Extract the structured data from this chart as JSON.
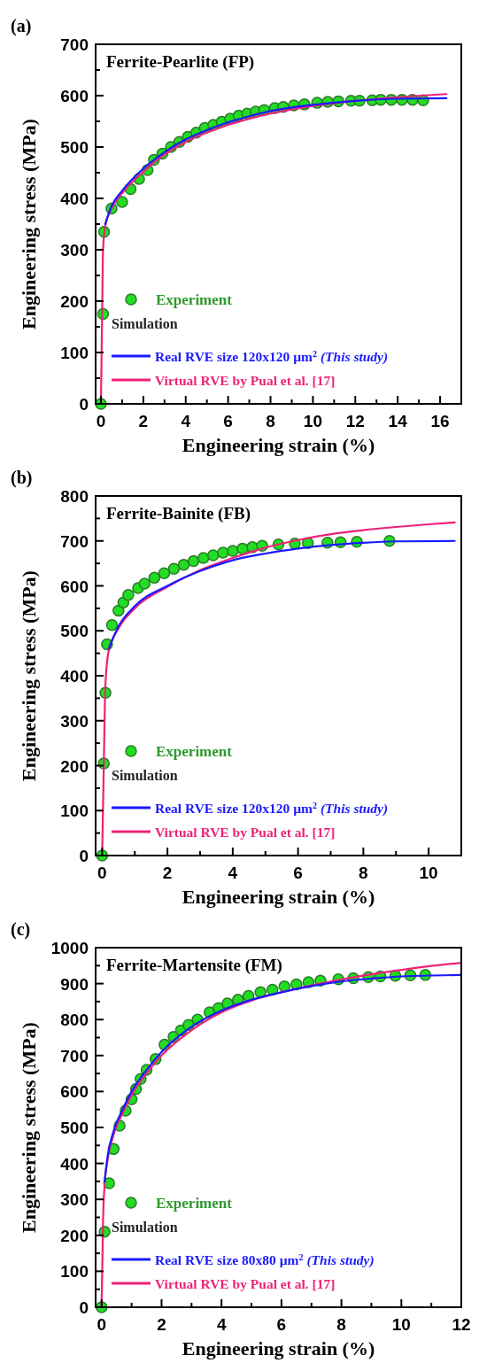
{
  "chart_data": [
    {
      "type": "line",
      "title": "Ferrite-Pearlite (FP)",
      "xlabel": "Engineering strain (%)",
      "ylabel": "Engineering stress (MPa)",
      "legend_title": "Simulation",
      "annotations": [
        "(a)"
      ],
      "legend": "bottom left",
      "xlim": [
        -0.25,
        17
      ],
      "ylim": [
        0,
        700
      ],
      "xticks": [
        0,
        {
          "value": 1,
          "label": null
        },
        2,
        {
          "value": 3,
          "label": null
        },
        4,
        {
          "value": 5,
          "label": null
        },
        6,
        {
          "value": 7,
          "label": null
        },
        8,
        {
          "value": 9,
          "label": null
        },
        10,
        {
          "value": 11,
          "label": null
        },
        12,
        {
          "value": 13,
          "label": null
        },
        14,
        {
          "value": 15,
          "label": null
        },
        16
      ],
      "yticks": [
        0,
        {
          "value": 50,
          "label": null
        },
        100,
        {
          "value": 150,
          "label": null
        },
        200,
        {
          "value": 250,
          "label": null
        },
        300,
        {
          "value": 350,
          "label": null
        },
        400,
        {
          "value": 450,
          "label": null
        },
        500,
        {
          "value": 550,
          "label": null
        },
        600,
        {
          "value": 650,
          "label": null
        },
        700
      ],
      "series": [
        {
          "type": "scatter",
          "marker": "circle",
          "name": "Experiment",
          "color": "#22dd22",
          "x": [
            0,
            0.1,
            0.15,
            0.5,
            1.0,
            1.4,
            1.8,
            2.2,
            2.5,
            2.9,
            3.3,
            3.7,
            4.1,
            4.5,
            4.9,
            5.3,
            5.7,
            6.1,
            6.5,
            6.9,
            7.3,
            7.7,
            8.2,
            8.6,
            9.1,
            9.6,
            10.2,
            10.7,
            11.2,
            11.8,
            12.2,
            12.8,
            13.2,
            13.7,
            14.2,
            14.7,
            15.2
          ],
          "values": [
            0,
            175,
            335,
            380,
            393,
            418,
            438,
            455,
            475,
            487,
            500,
            510,
            520,
            528,
            537,
            543,
            549,
            555,
            561,
            565,
            569,
            572,
            576,
            578,
            581,
            583,
            586,
            588,
            589,
            590,
            590,
            591,
            592,
            592,
            592,
            592,
            591
          ]
        },
        {
          "name": "Real RVE size 120x120 µm$^{2}$ (This study)",
          "color": "#1a1aff",
          "x": [
            0.2,
            0.5,
            1,
            2,
            3,
            4,
            5,
            6,
            7,
            8,
            10,
            12,
            14,
            16.3
          ],
          "values": [
            350,
            385,
            415,
            458,
            490,
            515,
            533,
            548,
            560,
            570,
            582,
            590,
            594,
            595
          ]
        },
        {
          "name": "Virtual RVE by Pual et al. [17]",
          "color": "#ee2277",
          "x": [
            0,
            0.05,
            0.1,
            0.2,
            0.5,
            1,
            2,
            3,
            4,
            5,
            6,
            7,
            8,
            10,
            12,
            14,
            16.3
          ],
          "values": [
            0,
            150,
            300,
            345,
            380,
            410,
            452,
            485,
            510,
            528,
            543,
            555,
            565,
            580,
            590,
            597,
            603
          ]
        }
      ]
    },
    {
      "type": "line",
      "title": "Ferrite-Bainite (FB)",
      "xlabel": "Engineering strain (%)",
      "ylabel": "Engineering stress (MPa)",
      "legend_title": "Simulation",
      "annotations": [
        "(b)"
      ],
      "legend": "bottom left",
      "xlim": [
        -0.2,
        11
      ],
      "ylim": [
        0,
        800
      ],
      "xticks": [
        0,
        {
          "value": 1,
          "label": null
        },
        2,
        {
          "value": 3,
          "label": null
        },
        4,
        {
          "value": 5,
          "label": null
        },
        6,
        {
          "value": 7,
          "label": null
        },
        8,
        {
          "value": 9,
          "label": null
        },
        10
      ],
      "yticks": [
        0,
        {
          "value": 50,
          "label": null
        },
        100,
        {
          "value": 150,
          "label": null
        },
        200,
        {
          "value": 250,
          "label": null
        },
        300,
        {
          "value": 350,
          "label": null
        },
        400,
        {
          "value": 450,
          "label": null
        },
        500,
        {
          "value": 550,
          "label": null
        },
        600,
        {
          "value": 650,
          "label": null
        },
        700,
        {
          "value": 750,
          "label": null
        },
        800
      ],
      "series": [
        {
          "type": "scatter",
          "marker": "circle",
          "name": "Experiment",
          "color": "#22dd22",
          "x": [
            0,
            0.05,
            0.1,
            0.15,
            0.3,
            0.5,
            0.65,
            0.8,
            1.1,
            1.3,
            1.6,
            1.9,
            2.2,
            2.5,
            2.8,
            3.1,
            3.4,
            3.7,
            4.0,
            4.3,
            4.6,
            4.9,
            5.4,
            5.9,
            6.3,
            6.9,
            7.3,
            7.8,
            8.8
          ],
          "values": [
            0,
            205,
            362,
            470,
            513,
            545,
            563,
            580,
            595,
            605,
            618,
            628,
            638,
            647,
            655,
            662,
            668,
            674,
            678,
            683,
            686,
            689,
            692,
            694,
            695,
            696,
            697,
            698,
            700
          ]
        },
        {
          "name": "Real RVE size 120x120 µm$^{2}$ (This study)",
          "color": "#1a1aff",
          "x": [
            0.2,
            0.5,
            1,
            2,
            3,
            4,
            5,
            6,
            7,
            8,
            9,
            10.8
          ],
          "values": [
            460,
            510,
            555,
            600,
            633,
            657,
            672,
            683,
            691,
            696,
            699,
            700
          ]
        },
        {
          "name": "Virtual RVE by Pual et al. [17]",
          "color": "#ee2277",
          "x": [
            0,
            0.05,
            0.1,
            0.2,
            0.5,
            1,
            2,
            3,
            4,
            5,
            6,
            7,
            8,
            9,
            10,
            10.8
          ],
          "values": [
            0,
            200,
            380,
            455,
            505,
            550,
            598,
            635,
            662,
            685,
            702,
            715,
            724,
            731,
            737,
            741
          ]
        }
      ]
    },
    {
      "type": "line",
      "title": "Ferrite-Martensite (FM)",
      "xlabel": "Engineering strain (%)",
      "ylabel": "Engineering stress (MPa)",
      "legend_title": "Simulation",
      "annotations": [
        "(c)"
      ],
      "legend": "bottom left",
      "xlim": [
        -0.2,
        12
      ],
      "ylim": [
        0,
        1000
      ],
      "xticks": [
        0,
        {
          "value": 1,
          "label": null
        },
        2,
        {
          "value": 3,
          "label": null
        },
        4,
        {
          "value": 5,
          "label": null
        },
        6,
        {
          "value": 7,
          "label": null
        },
        8,
        {
          "value": 9,
          "label": null
        },
        10,
        {
          "value": 11,
          "label": null
        },
        12
      ],
      "yticks": [
        0,
        {
          "value": 50,
          "label": null
        },
        100,
        {
          "value": 150,
          "label": null
        },
        200,
        {
          "value": 250,
          "label": null
        },
        300,
        {
          "value": 350,
          "label": null
        },
        400,
        {
          "value": 450,
          "label": null
        },
        500,
        {
          "value": 550,
          "label": null
        },
        600,
        {
          "value": 650,
          "label": null
        },
        700,
        {
          "value": 750,
          "label": null
        },
        800,
        {
          "value": 850,
          "label": null
        },
        900,
        {
          "value": 950,
          "label": null
        },
        1000
      ],
      "series": [
        {
          "type": "scatter",
          "marker": "circle",
          "name": "Experiment",
          "color": "#22dd22",
          "x": [
            0,
            0.1,
            0.25,
            0.4,
            0.6,
            0.8,
            1.0,
            1.15,
            1.3,
            1.5,
            1.8,
            2.1,
            2.4,
            2.65,
            2.9,
            3.2,
            3.6,
            3.9,
            4.2,
            4.55,
            4.9,
            5.3,
            5.7,
            6.1,
            6.5,
            6.9,
            7.3,
            7.9,
            8.4,
            8.9,
            9.3,
            9.8,
            10.3,
            10.8
          ],
          "values": [
            0,
            210,
            345,
            440,
            505,
            547,
            578,
            607,
            635,
            660,
            690,
            730,
            752,
            770,
            785,
            800,
            820,
            832,
            845,
            855,
            866,
            876,
            883,
            892,
            898,
            904,
            908,
            912,
            915,
            918,
            920,
            922,
            923,
            924
          ]
        },
        {
          "name": "Real RVE size 80x80 µm$^{2}$ (This study)",
          "color": "#1a1aff",
          "x": [
            0.1,
            0.2,
            0.4,
            0.7,
            1,
            1.5,
            2,
            3,
            4,
            5,
            6,
            7,
            8,
            9,
            10,
            12
          ],
          "values": [
            350,
            420,
            490,
            550,
            600,
            660,
            710,
            780,
            825,
            855,
            876,
            893,
            906,
            914,
            920,
            924
          ]
        },
        {
          "name": "Virtual RVE by Pual et al. [17]",
          "color": "#ee2277",
          "x": [
            0,
            0.05,
            0.1,
            0.2,
            0.4,
            0.7,
            1,
            1.5,
            2,
            3,
            4,
            5,
            6,
            7,
            8,
            9,
            10,
            11,
            12
          ],
          "values": [
            0,
            250,
            340,
            410,
            480,
            540,
            590,
            650,
            700,
            770,
            820,
            853,
            876,
            895,
            912,
            926,
            938,
            949,
            958
          ]
        }
      ]
    }
  ]
}
